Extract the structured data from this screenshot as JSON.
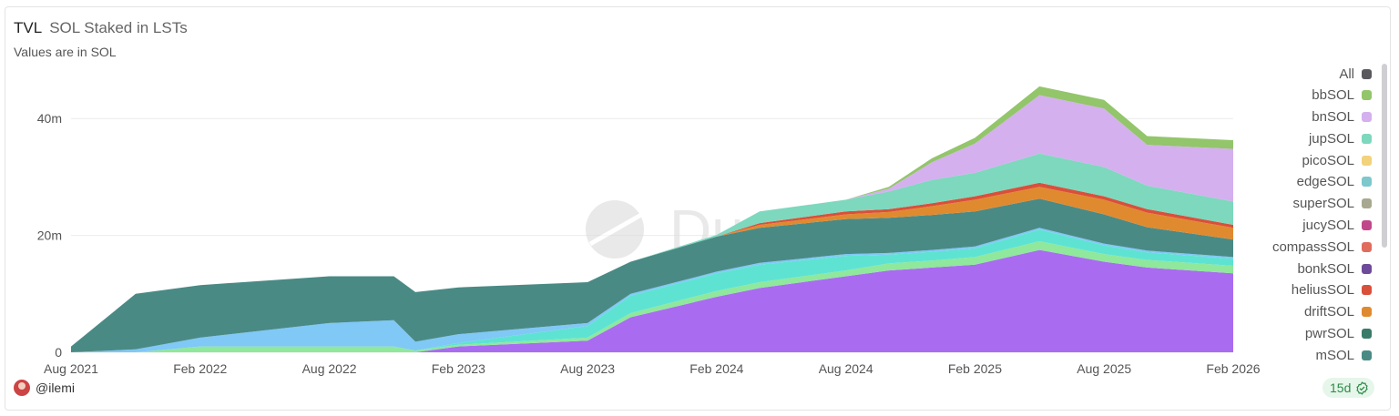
{
  "header": {
    "title": "TVL",
    "subtitle_inline": "SOL Staked in LSTs",
    "note": "Values are in SOL"
  },
  "footer": {
    "user": "@ilemi",
    "refresh_badge": "15d",
    "badge_icon": "check-circle-icon"
  },
  "watermark": "Dune",
  "legend": [
    {
      "label": "All",
      "color": "#5a5a5e"
    },
    {
      "label": "bbSOL",
      "color": "#93c56b"
    },
    {
      "label": "bnSOL",
      "color": "#d4b0ee"
    },
    {
      "label": "jupSOL",
      "color": "#7dd8bd"
    },
    {
      "label": "picoSOL",
      "color": "#f2d27a"
    },
    {
      "label": "edgeSOL",
      "color": "#7cc8cc"
    },
    {
      "label": "superSOL",
      "color": "#a8a890"
    },
    {
      "label": "jucySOL",
      "color": "#c0488a"
    },
    {
      "label": "compassSOL",
      "color": "#e06c5e"
    },
    {
      "label": "bonkSOL",
      "color": "#6e4a9a"
    },
    {
      "label": "heliusSOL",
      "color": "#d9503a"
    },
    {
      "label": "driftSOL",
      "color": "#e08a30"
    },
    {
      "label": "pwrSOL",
      "color": "#3a7a68"
    },
    {
      "label": "mSOL",
      "color": "#4a8a85"
    }
  ],
  "chart_data": {
    "type": "area",
    "stacked": true,
    "title": "SOL Staked in LSTs",
    "xlabel": "",
    "ylabel": "",
    "ylim": [
      0,
      50000000
    ],
    "yticks": [
      {
        "value": 0,
        "label": "0"
      },
      {
        "value": 20000000,
        "label": "20m"
      },
      {
        "value": 40000000,
        "label": "40m"
      }
    ],
    "xticks": [
      {
        "date": "2021-08",
        "label": "Aug 2021"
      },
      {
        "date": "2022-02",
        "label": "Feb 2022"
      },
      {
        "date": "2022-08",
        "label": "Aug 2022"
      },
      {
        "date": "2023-02",
        "label": "Feb 2023"
      },
      {
        "date": "2023-08",
        "label": "Aug 2023"
      },
      {
        "date": "2024-02",
        "label": "Feb 2024"
      },
      {
        "date": "2024-08",
        "label": "Aug 2024"
      },
      {
        "date": "2025-02",
        "label": "Feb 2025"
      },
      {
        "date": "2025-08",
        "label": "Aug 2025"
      },
      {
        "date": "2026-02",
        "label": "Feb 2026"
      }
    ],
    "xlim": [
      "2021-08",
      "2026-02"
    ],
    "grid": true,
    "legend_position": "right",
    "x": [
      "2021-08",
      "2021-11",
      "2022-02",
      "2022-08",
      "2022-11",
      "2022-12",
      "2023-02",
      "2023-08",
      "2023-10",
      "2024-02",
      "2024-04",
      "2024-08",
      "2024-10",
      "2024-12",
      "2025-02",
      "2025-05",
      "2025-08",
      "2025-10",
      "2026-02"
    ],
    "series": [
      {
        "color": "#a96cf0",
        "values": [
          0,
          0,
          0,
          0,
          0,
          0,
          1,
          2,
          6,
          9.5,
          11,
          13,
          14,
          14.5,
          15,
          17.5,
          15.5,
          14.5,
          13.5
        ]
      },
      {
        "color": "#8fe89c",
        "values": [
          0,
          0,
          1,
          1,
          1,
          0.3,
          0.3,
          0.5,
          0.7,
          1,
          1,
          1,
          1.2,
          1.2,
          1.3,
          1.5,
          1.3,
          1.3,
          1.3
        ]
      },
      {
        "color": "#5ee3d2",
        "values": [
          0,
          0,
          0,
          0,
          0,
          0,
          0.3,
          2,
          3,
          3,
          3,
          2.5,
          1.5,
          1.5,
          1.5,
          2,
          1.5,
          1.3,
          1.2
        ]
      },
      {
        "color": "#80c8f6",
        "values": [
          0,
          0.5,
          1.5,
          4,
          4.5,
          1.5,
          1.5,
          0.5,
          0.3,
          0.3,
          0.3,
          0.3,
          0.3,
          0.3,
          0.3,
          0.3,
          0.3,
          0.3,
          0.3
        ]
      },
      {
        "name": "mSOL",
        "color": "#4a8a85",
        "values": [
          1,
          9.5,
          9,
          8,
          7.5,
          8.5,
          8,
          7,
          5.5,
          6,
          6,
          6,
          6,
          6,
          6,
          5,
          5,
          4,
          3
        ]
      },
      {
        "name": "driftSOL",
        "color": "#e08a30",
        "values": [
          0,
          0,
          0,
          0,
          0,
          0,
          0,
          0,
          0,
          0,
          0.5,
          0.8,
          1,
          1.5,
          2,
          2,
          2.5,
          2.5,
          2
        ]
      },
      {
        "name": "heliusSOL",
        "color": "#d9503a",
        "values": [
          0,
          0,
          0,
          0,
          0,
          0,
          0,
          0,
          0,
          0,
          0.3,
          0.5,
          0.5,
          0.5,
          0.6,
          0.7,
          0.6,
          0.6,
          0.5
        ]
      },
      {
        "name": "jupSOL",
        "color": "#7dd8bd",
        "values": [
          0,
          0,
          0,
          0,
          0,
          0,
          0,
          0,
          0,
          0.3,
          2,
          2,
          3,
          4,
          4,
          5,
          5,
          4,
          4
        ]
      },
      {
        "name": "bnSOL",
        "color": "#d4b0ee",
        "values": [
          0,
          0,
          0,
          0,
          0,
          0,
          0,
          0,
          0,
          0,
          0,
          0,
          0.5,
          3,
          5,
          10,
          10,
          7,
          9
        ]
      },
      {
        "name": "bbSOL",
        "color": "#93c56b",
        "values": [
          0,
          0,
          0,
          0,
          0,
          0,
          0,
          0,
          0,
          0,
          0,
          0,
          0.3,
          0.7,
          1,
          1.5,
          1.5,
          1.5,
          1.5
        ]
      }
    ],
    "value_unit": "millions SOL"
  }
}
